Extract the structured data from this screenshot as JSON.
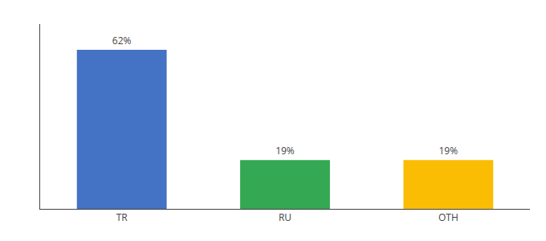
{
  "chart_data": {
    "type": "bar",
    "categories": [
      "TR",
      "RU",
      "OTH"
    ],
    "values": [
      62,
      19,
      19
    ],
    "value_labels": [
      "62%",
      "19%",
      "19%"
    ],
    "colors": [
      "#4472C4",
      "#34A853",
      "#FBBC04"
    ],
    "ylim": [
      0,
      72
    ],
    "grid": false,
    "data_labels": true,
    "tick_labels": "x"
  }
}
